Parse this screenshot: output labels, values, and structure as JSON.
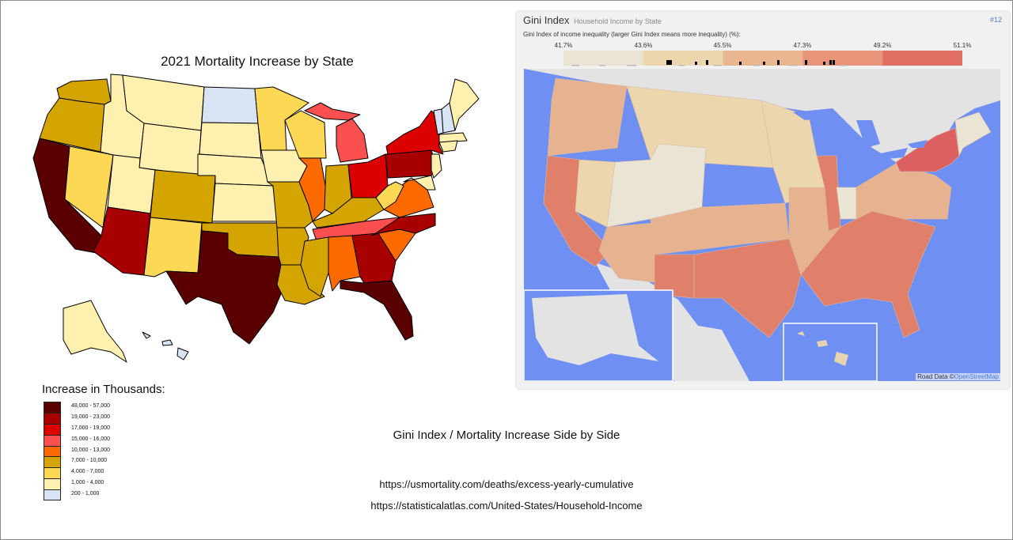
{
  "left_map": {
    "title": "2021 Mortality Increase by State",
    "legend_title": "Increase in Thousands:",
    "legend": [
      {
        "label": "48,000 - 57,000",
        "color": "#5a0000"
      },
      {
        "label": "19,000 - 23,000",
        "color": "#a80000"
      },
      {
        "label": "17,000 - 19,000",
        "color": "#dc0000"
      },
      {
        "label": "15,000 - 16,000",
        "color": "#fb5050"
      },
      {
        "label": "10,000 - 13,000",
        "color": "#fd6a00"
      },
      {
        "label": "7,000 - 10,000",
        "color": "#d4a400"
      },
      {
        "label": "4,000 -  7,000",
        "color": "#fdd854"
      },
      {
        "label": "1,000 - 4,000",
        "color": "#fef1b0"
      },
      {
        "label": "200 -  1,000",
        "color": "#d8e4f4"
      }
    ]
  },
  "right_panel": {
    "title": "Gini Index",
    "subtitle": "Household Income by State",
    "panel_number": "#12",
    "description": "Gini Index of income inequality (larger Gini Index means more inequality) (%):",
    "scale_ticks": [
      "41.7%",
      "43.6%",
      "45.5%",
      "47.3%",
      "49.2%",
      "51.1%"
    ],
    "scale_colors": [
      "#e9e4d4",
      "#ecd6ae",
      "#e9b690",
      "#e89478",
      "#e06e62"
    ],
    "attribution_prefix": "Road Data ©",
    "attribution_link": "OpenStreetMap"
  },
  "caption": "Gini Index / Mortality Increase Side by Side",
  "sources": [
    "https://usmortality.com/deaths/excess-yearly-cumulative",
    "https://statisticalatlas.com/United-States/Household-Income"
  ]
}
